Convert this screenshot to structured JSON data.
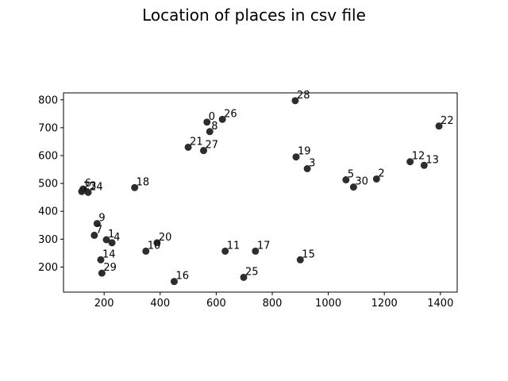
{
  "chart_data": {
    "type": "scatter",
    "title": "Location of places in csv file",
    "xlabel": "",
    "ylabel": "",
    "xlim": [
      55,
      1460
    ],
    "ylim": [
      110,
      825
    ],
    "xticks": [
      200,
      400,
      600,
      800,
      1000,
      1200,
      1400
    ],
    "yticks": [
      200,
      300,
      400,
      500,
      600,
      700,
      800
    ],
    "grid": false,
    "marker_color": "#222222",
    "points": [
      {
        "label": "0",
        "x": 567,
        "y": 720
      },
      {
        "label": "1",
        "x": 208,
        "y": 298
      },
      {
        "label": "2",
        "x": 1172,
        "y": 516
      },
      {
        "label": "3",
        "x": 925,
        "y": 553
      },
      {
        "label": "4",
        "x": 228,
        "y": 287
      },
      {
        "label": "5",
        "x": 1063,
        "y": 513
      },
      {
        "label": "6",
        "x": 125,
        "y": 480
      },
      {
        "label": "7",
        "x": 165,
        "y": 314
      },
      {
        "label": "8",
        "x": 577,
        "y": 686
      },
      {
        "label": "9",
        "x": 175,
        "y": 356
      },
      {
        "label": "10",
        "x": 349,
        "y": 257
      },
      {
        "label": "11",
        "x": 632,
        "y": 257
      },
      {
        "label": "12",
        "x": 1292,
        "y": 578
      },
      {
        "label": "13",
        "x": 1342,
        "y": 565
      },
      {
        "label": "14",
        "x": 188,
        "y": 226
      },
      {
        "label": "15",
        "x": 900,
        "y": 226
      },
      {
        "label": "16",
        "x": 450,
        "y": 148
      },
      {
        "label": "17",
        "x": 740,
        "y": 257
      },
      {
        "label": "18",
        "x": 309,
        "y": 485
      },
      {
        "label": "19",
        "x": 885,
        "y": 595
      },
      {
        "label": "20",
        "x": 389,
        "y": 287
      },
      {
        "label": "21",
        "x": 500,
        "y": 630
      },
      {
        "label": "22",
        "x": 1395,
        "y": 706
      },
      {
        "label": "23",
        "x": 120,
        "y": 471
      },
      {
        "label": "24",
        "x": 143,
        "y": 468
      },
      {
        "label": "25",
        "x": 698,
        "y": 163
      },
      {
        "label": "26",
        "x": 622,
        "y": 730
      },
      {
        "label": "27",
        "x": 555,
        "y": 618
      },
      {
        "label": "28",
        "x": 882,
        "y": 797
      },
      {
        "label": "29",
        "x": 192,
        "y": 178
      },
      {
        "label": "30",
        "x": 1090,
        "y": 487
      }
    ]
  }
}
